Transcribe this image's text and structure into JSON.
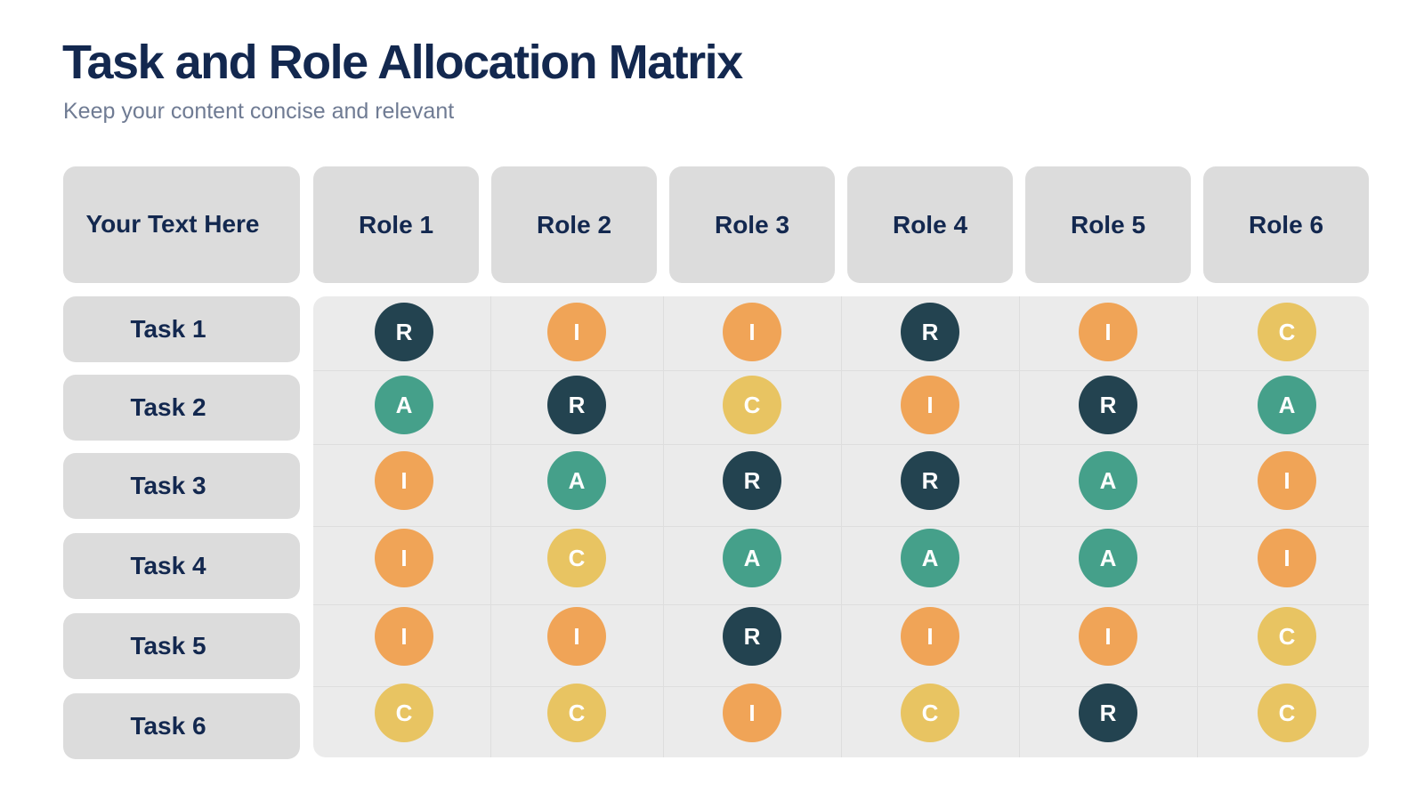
{
  "title": "Task and Role Allocation Matrix",
  "subtitle": "Keep your content concise and relevant",
  "corner_label": "Your Text Here",
  "roles": [
    "Role 1",
    "Role 2",
    "Role 3",
    "Role 4",
    "Role 5",
    "Role 6"
  ],
  "tasks": [
    "Task 1",
    "Task 2",
    "Task 3",
    "Task 4",
    "Task 5",
    "Task 6"
  ],
  "matrix": [
    [
      "R",
      "I",
      "I",
      "R",
      "I",
      "C"
    ],
    [
      "A",
      "R",
      "C",
      "I",
      "R",
      "A"
    ],
    [
      "I",
      "A",
      "R",
      "R",
      "A",
      "I"
    ],
    [
      "I",
      "C",
      "A",
      "A",
      "A",
      "I"
    ],
    [
      "I",
      "I",
      "R",
      "I",
      "I",
      "C"
    ],
    [
      "C",
      "C",
      "I",
      "C",
      "R",
      "C"
    ]
  ],
  "colors": {
    "R": "#234350",
    "A": "#45a08a",
    "C": "#e8c462",
    "I": "#f0a457"
  }
}
